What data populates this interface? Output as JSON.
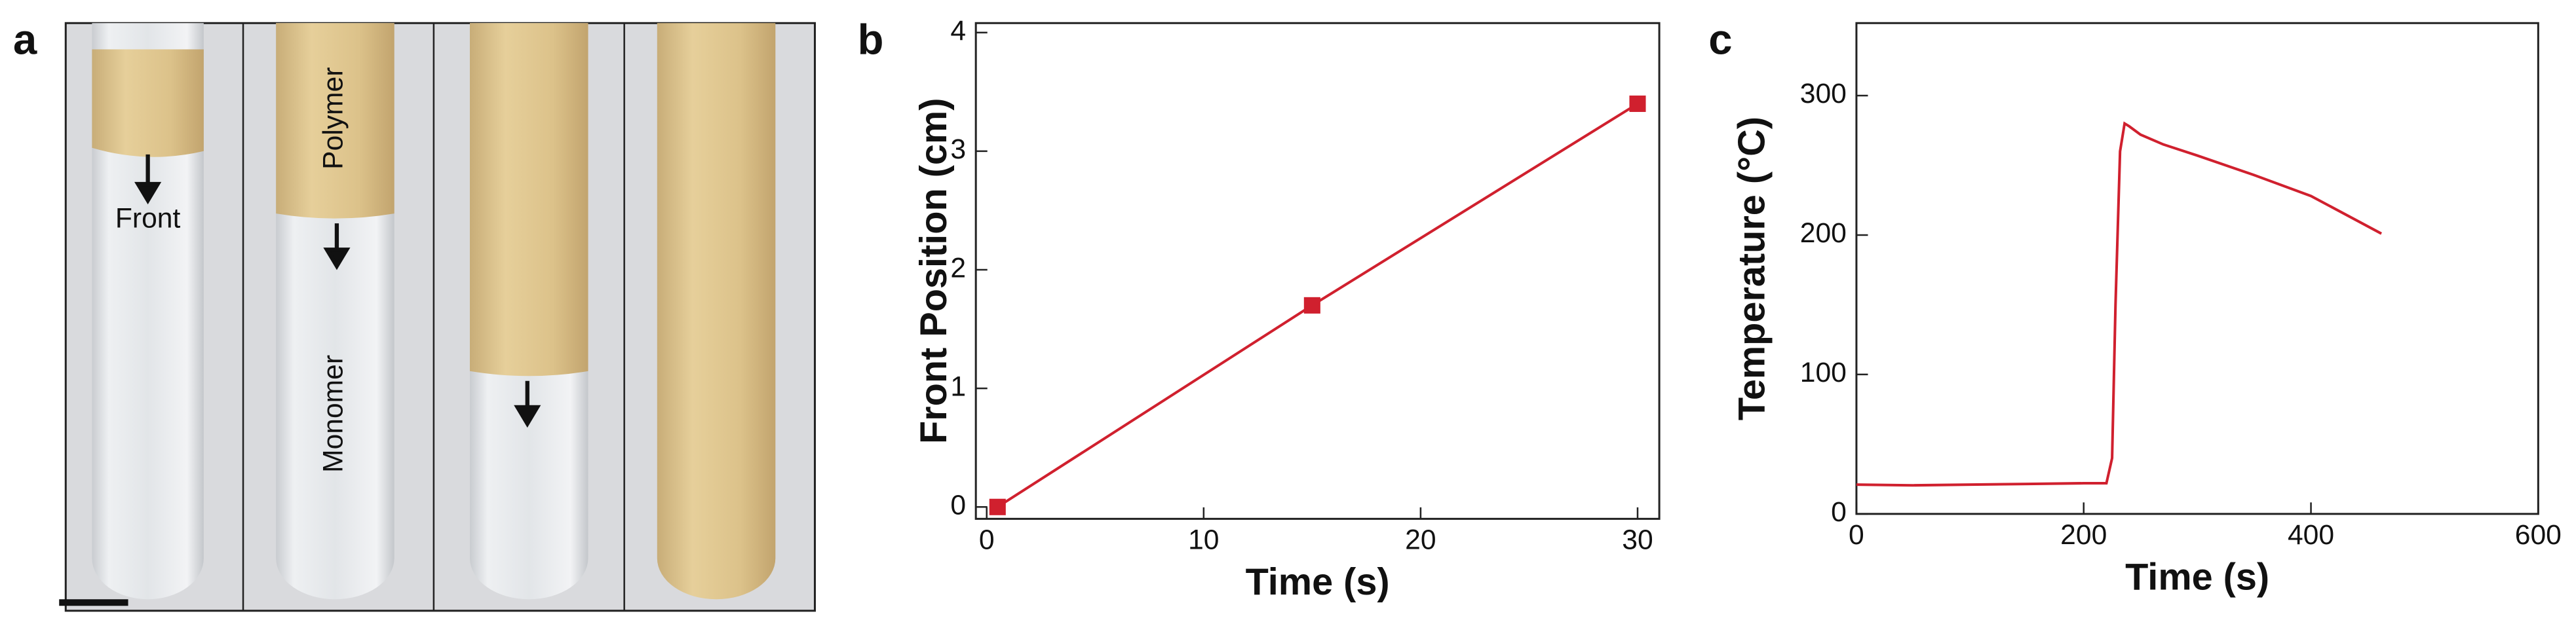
{
  "photo_panel": {
    "label": "a",
    "annotations": [
      "Front",
      "Polymer",
      "Monomer"
    ]
  },
  "chart_data": [
    {
      "type": "line",
      "panel_label": "b",
      "x_label": "Time (s)",
      "y_label": "Front Position (cm)",
      "markers": true,
      "x": [
        0.5,
        15,
        30
      ],
      "series": [
        {
          "color": "#d0202e",
          "values": [
            0,
            1.7,
            3.4
          ]
        }
      ],
      "xlim": [
        -0.5,
        31
      ],
      "ylim": [
        -0.1,
        4.08
      ],
      "xticks": [
        0,
        10,
        20,
        30
      ],
      "yticks": [
        0,
        1,
        2,
        3,
        4
      ]
    },
    {
      "type": "line",
      "panel_label": "c",
      "x_label": "Time (s)",
      "y_label": "Temperature (°C)",
      "markers": false,
      "x": [
        0,
        50,
        100,
        150,
        200,
        220,
        225,
        228,
        232,
        236,
        240,
        250,
        270,
        300,
        350,
        400,
        462
      ],
      "series": [
        {
          "color": "#d0202e",
          "values": [
            21,
            20.5,
            21,
            21.5,
            22,
            22,
            40,
            150,
            260,
            280,
            278,
            272,
            265,
            257,
            243,
            228,
            201
          ]
        }
      ],
      "xlim": [
        0,
        600
      ],
      "ylim": [
        0,
        352
      ],
      "xticks": [
        0,
        200,
        400,
        600
      ],
      "yticks": [
        0,
        100,
        200,
        300
      ]
    }
  ]
}
